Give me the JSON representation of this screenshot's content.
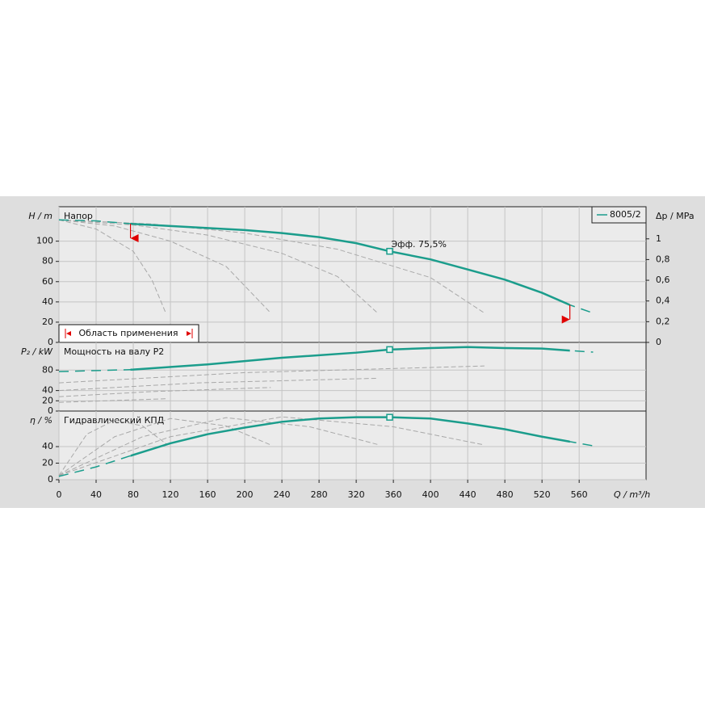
{
  "chart_data": [
    {
      "type": "line",
      "title": "Напор",
      "ylabel": "H / m",
      "y2label": "Δp / MPa",
      "ylim": [
        0,
        134
      ],
      "yticks": [
        0,
        20,
        40,
        60,
        80,
        100
      ],
      "y2lim": [
        0,
        1.31
      ],
      "y2ticks": [
        0,
        {
          "value": 0.2,
          "label": "0,2"
        },
        {
          "value": 0.4,
          "label": "0,4"
        },
        {
          "value": 0.6,
          "label": "0,6"
        },
        {
          "value": 0.8,
          "label": "0,8"
        },
        1
      ],
      "legend": "upper right",
      "grid": true,
      "series": [
        {
          "name": "8005/2",
          "color": "#1b9d8c",
          "x": [
            0,
            40,
            80,
            120,
            160,
            200,
            240,
            280,
            320,
            356,
            400,
            440,
            480,
            520,
            550,
            575
          ],
          "values": [
            121,
            120,
            117,
            115,
            113,
            111,
            108,
            104,
            98,
            90,
            82,
            72,
            62,
            49,
            37,
            29
          ]
        }
      ],
      "reference_curves": [
        {
          "color": "#a8a8a8",
          "x": [
            0,
            40,
            80,
            100,
            115
          ],
          "values": [
            121,
            112,
            90,
            62,
            29
          ]
        },
        {
          "color": "#a8a8a8",
          "x": [
            0,
            60,
            120,
            180,
            228
          ],
          "values": [
            121,
            115,
            100,
            75,
            29
          ]
        },
        {
          "color": "#a8a8a8",
          "x": [
            0,
            80,
            160,
            240,
            300,
            343
          ],
          "values": [
            121,
            116,
            106,
            88,
            65,
            29
          ]
        },
        {
          "color": "#a8a8a8",
          "x": [
            0,
            100,
            200,
            300,
            400,
            458
          ],
          "values": [
            121,
            117,
            108,
            92,
            64,
            29
          ]
        }
      ],
      "range": [
        77,
        550
      ],
      "range_label": "Область применения",
      "duty_point": {
        "x": 356,
        "value": 90
      },
      "annotation": "Эфф.  75,5%"
    },
    {
      "type": "line",
      "title": "Мощность на валу P2",
      "ylabel": "P₂ / kW",
      "ylim": [
        0,
        134
      ],
      "yticks": [
        0,
        20,
        40,
        80
      ],
      "grid": true,
      "series": [
        {
          "color": "#1b9d8c",
          "x": [
            0,
            80,
            160,
            240,
            320,
            356,
            400,
            440,
            480,
            520,
            550,
            575
          ],
          "values": [
            77,
            81,
            91,
            104,
            114,
            120,
            123,
            125,
            123,
            122,
            118,
            115
          ]
        }
      ],
      "reference_curves": [
        {
          "color": "#a8a8a8",
          "x": [
            0,
            115
          ],
          "values": [
            17,
            24
          ]
        },
        {
          "color": "#a8a8a8",
          "x": [
            0,
            100,
            228
          ],
          "values": [
            28,
            38,
            46
          ]
        },
        {
          "color": "#a8a8a8",
          "x": [
            0,
            150,
            343
          ],
          "values": [
            40,
            55,
            64
          ]
        },
        {
          "color": "#a8a8a8",
          "x": [
            0,
            200,
            458
          ],
          "values": [
            55,
            75,
            88
          ]
        }
      ],
      "range": [
        77,
        550
      ],
      "duty_point": {
        "x": 356,
        "value": 120
      }
    },
    {
      "type": "line",
      "title": "Гидравлический КПД",
      "ylabel": "η / %",
      "xlabel": "Q / m³/h",
      "ylim": [
        0,
        83
      ],
      "yticks": [
        0,
        20,
        40
      ],
      "grid": true,
      "xlim": [
        0,
        632
      ],
      "xticks": [
        0,
        40,
        80,
        120,
        160,
        200,
        240,
        280,
        320,
        360,
        400,
        440,
        480,
        520,
        560
      ],
      "series": [
        {
          "color": "#1b9d8c",
          "x": [
            0,
            40,
            80,
            120,
            160,
            200,
            240,
            280,
            320,
            356,
            400,
            440,
            480,
            520,
            550,
            575
          ],
          "values": [
            4,
            15.5,
            30,
            44,
            55,
            63,
            70,
            74,
            75.5,
            75.5,
            74,
            68,
            61,
            52,
            46,
            41
          ]
        }
      ],
      "reference_curves": [
        {
          "color": "#a8a8a8",
          "x": [
            0,
            30,
            60,
            90,
            117
          ],
          "values": [
            5,
            55,
            72,
            65,
            42
          ]
        },
        {
          "color": "#a8a8a8",
          "x": [
            0,
            60,
            120,
            180,
            228
          ],
          "values": [
            5,
            52,
            74,
            65,
            42
          ]
        },
        {
          "color": "#a8a8a8",
          "x": [
            0,
            90,
            180,
            270,
            345
          ],
          "values": [
            5,
            52,
            75,
            64,
            42
          ]
        },
        {
          "color": "#a8a8a8",
          "x": [
            0,
            120,
            240,
            360,
            458
          ],
          "values": [
            5,
            52,
            76,
            64,
            42
          ]
        }
      ],
      "range": [
        77,
        550
      ],
      "duty_point": {
        "x": 356,
        "value": 75.5
      }
    }
  ]
}
